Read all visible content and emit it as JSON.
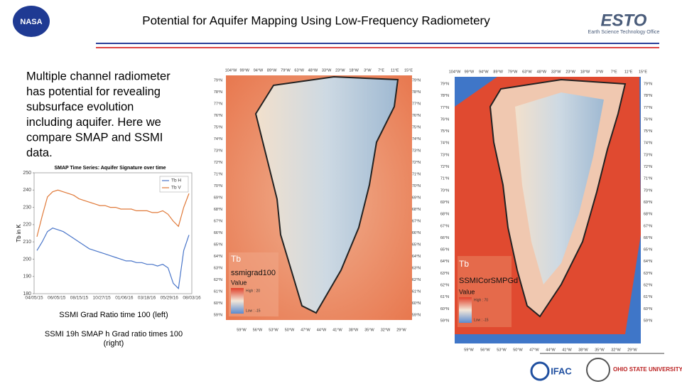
{
  "header": {
    "title": "Potential for Aquifer Mapping Using Low-Frequency Radiometery",
    "left_logo": "NASA",
    "right_logo": "ESTO",
    "right_logo_subtitle": "Earth Science Technology Office"
  },
  "body": {
    "paragraph_lines": [
      "Multiple channel radiometer",
      "has potential for revealing",
      "subsurface evolution",
      "including aquifer.  Here we",
      "compare SMAP and SSMI",
      "data."
    ],
    "caption_left": "SSMI Grad Ratio time 100 (left)",
    "caption_right_lines": [
      "SSMI 19h SMAP h Grad ratio times 100",
      "(right)"
    ]
  },
  "inset_chart": {
    "type": "line",
    "title": "SMAP Time Series: Aquifer Signature over time",
    "y_label": "Tb in K",
    "xtick_labels": [
      "04/05/15",
      "06/05/15",
      "08/15/15",
      "10/27/15",
      "01/06/16",
      "03/18/16",
      "05/29/16",
      "08/03/16"
    ],
    "ylim": [
      180,
      250
    ],
    "yticks": [
      180,
      190,
      200,
      210,
      220,
      230,
      240,
      250
    ],
    "series": [
      {
        "name": "Tb H",
        "color": "#4a76c9",
        "values": [
          205,
          210,
          216,
          218,
          217,
          216,
          214,
          212,
          210,
          208,
          206,
          205,
          204,
          203,
          202,
          201,
          200,
          199,
          199,
          198,
          198,
          197,
          197,
          196,
          197,
          195,
          186,
          183,
          205,
          214
        ]
      },
      {
        "name": "Tb V",
        "color": "#e07a3a",
        "values": [
          213,
          225,
          236,
          239,
          240,
          239,
          238,
          237,
          235,
          234,
          233,
          232,
          231,
          231,
          230,
          230,
          229,
          229,
          229,
          228,
          228,
          228,
          227,
          227,
          228,
          226,
          222,
          219,
          230,
          238
        ]
      }
    ]
  },
  "maps": {
    "lat_labels": [
      "79°N",
      "78°N",
      "77°N",
      "76°N",
      "75°N",
      "74°N",
      "73°N",
      "72°N",
      "71°N",
      "70°N",
      "69°N",
      "68°N",
      "67°N",
      "66°N",
      "65°N",
      "64°N",
      "63°N",
      "62°N",
      "61°N",
      "60°N",
      "59°N"
    ],
    "top_lon_labels": [
      "104°W",
      "99°W",
      "94°W",
      "89°W",
      "79°W",
      "63°W",
      "48°W",
      "33°W",
      "23°W",
      "18°W",
      "3°W",
      "7°E",
      "11°E",
      "15°E"
    ],
    "bottom_lon_labels": [
      "59°W",
      "56°W",
      "53°W",
      "50°W",
      "47°W",
      "44°W",
      "41°W",
      "38°W",
      "35°W",
      "32°W",
      "29°W"
    ],
    "left": {
      "legend_title": "Tb",
      "layer": "ssmigrad100",
      "value": "Value",
      "high": "High : 20",
      "low": "Low : -15"
    },
    "right": {
      "legend_title": "Tb",
      "layer": "SSMICorSMPGd",
      "value": "Value",
      "high": "High : 70",
      "low": "Low : -15"
    }
  },
  "footer": {
    "logo_1": "IFAC",
    "logo_2": "OHIO STATE UNIVERSITY"
  }
}
